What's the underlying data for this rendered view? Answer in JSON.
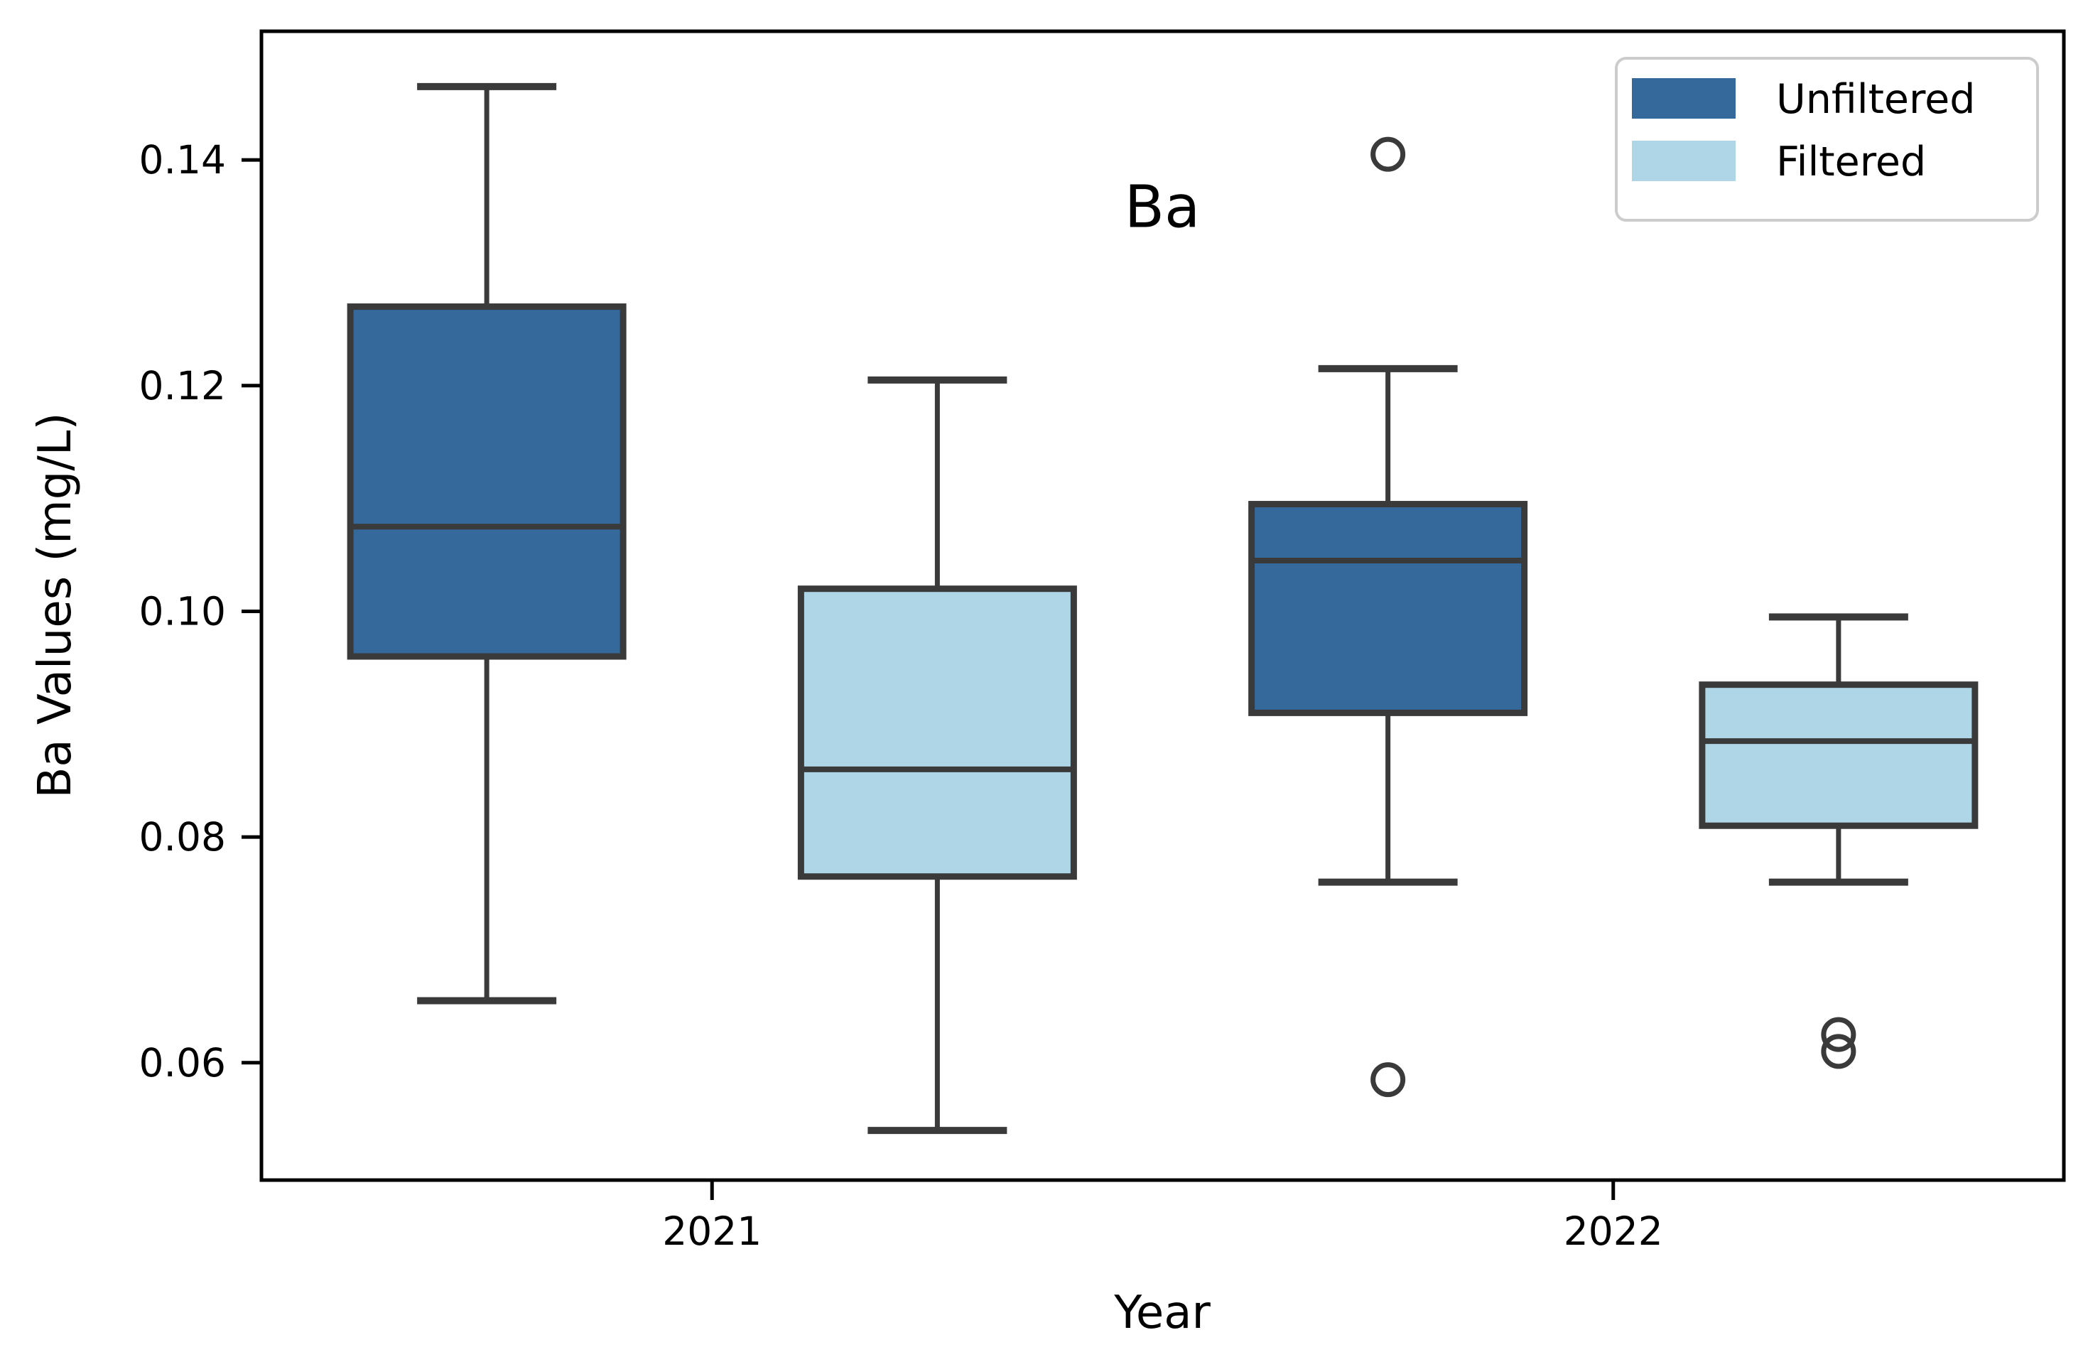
{
  "chart_data": {
    "type": "boxplot",
    "title": "Ba",
    "xlabel": "Year",
    "ylabel": "Ba Values (mg/L)",
    "categories": [
      "2021",
      "2022"
    ],
    "y_tick_labels": [
      "0.14",
      "0.12",
      "0.10",
      "0.08",
      "0.06"
    ],
    "y_ticks": [
      0.14,
      0.12,
      0.1,
      0.08,
      0.06
    ],
    "ylim": [
      0.0496,
      0.1514
    ],
    "grid": "off",
    "legend": {
      "position": "upper right",
      "items": [
        {
          "label": "Unfiltered",
          "color": "#35689B"
        },
        {
          "label": "Filtered",
          "color": "#AFD6E6"
        }
      ]
    },
    "series": [
      {
        "name": "Unfiltered",
        "color": "#35689B",
        "boxes": [
          {
            "category": "2021",
            "whisker_low": 0.0655,
            "q1": 0.096,
            "median": 0.1075,
            "q3": 0.127,
            "whisker_high": 0.1465,
            "outliers": []
          },
          {
            "category": "2022",
            "whisker_low": 0.076,
            "q1": 0.091,
            "median": 0.1045,
            "q3": 0.1095,
            "whisker_high": 0.1215,
            "outliers": [
              0.1405,
              0.0585
            ]
          }
        ]
      },
      {
        "name": "Filtered",
        "color": "#AFD6E6",
        "boxes": [
          {
            "category": "2021",
            "whisker_low": 0.054,
            "q1": 0.0765,
            "median": 0.086,
            "q3": 0.102,
            "whisker_high": 0.1205,
            "outliers": []
          },
          {
            "category": "2022",
            "whisker_low": 0.076,
            "q1": 0.081,
            "median": 0.0885,
            "q3": 0.0935,
            "whisker_high": 0.0995,
            "outliers": [
              0.0625,
              0.061
            ]
          }
        ]
      }
    ],
    "styles": {
      "box_edge_color": "#3A3A3A",
      "axis_color": "#000000",
      "legend_border_color": "#CCCCCC",
      "background_color": "#FFFFFF"
    }
  }
}
